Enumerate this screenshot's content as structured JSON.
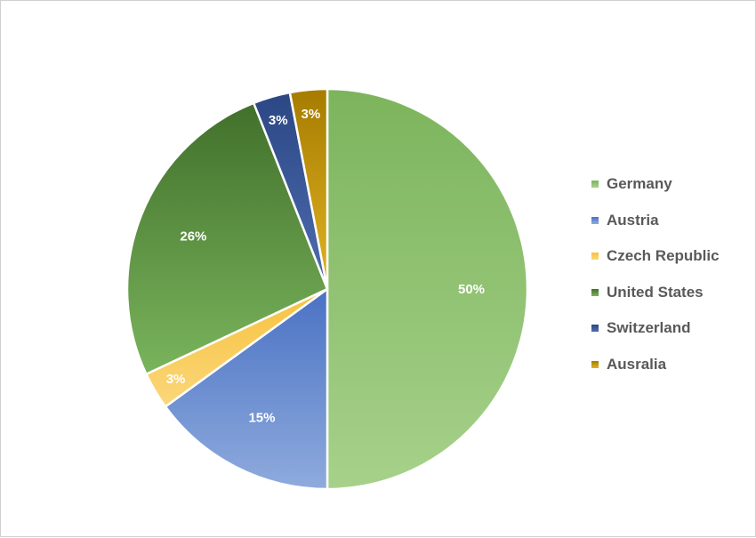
{
  "chart_data": {
    "type": "pie",
    "title": "",
    "slices": [
      {
        "label": "Germany",
        "value": 50,
        "display": "50%",
        "color": "#7cb45c",
        "color_light": "#a6d18a"
      },
      {
        "label": "Austria",
        "value": 15,
        "display": "15%",
        "color": "#4a72c4",
        "color_light": "#8fabdd"
      },
      {
        "label": "Czech Republic",
        "value": 3,
        "display": "3%",
        "color": "#f6c13e",
        "color_light": "#fbd77a"
      },
      {
        "label": "United States",
        "value": 26,
        "display": "26%",
        "color": "#41702b",
        "color_light": "#7ab45c"
      },
      {
        "label": "Switzerland",
        "value": 3,
        "display": "3%",
        "color": "#2b4784",
        "color_light": "#4e6cb0"
      },
      {
        "label": "Ausralia",
        "value": 3,
        "display": "3%",
        "color": "#a67c00",
        "color_light": "#e1b324"
      }
    ],
    "legend_position": "right"
  }
}
